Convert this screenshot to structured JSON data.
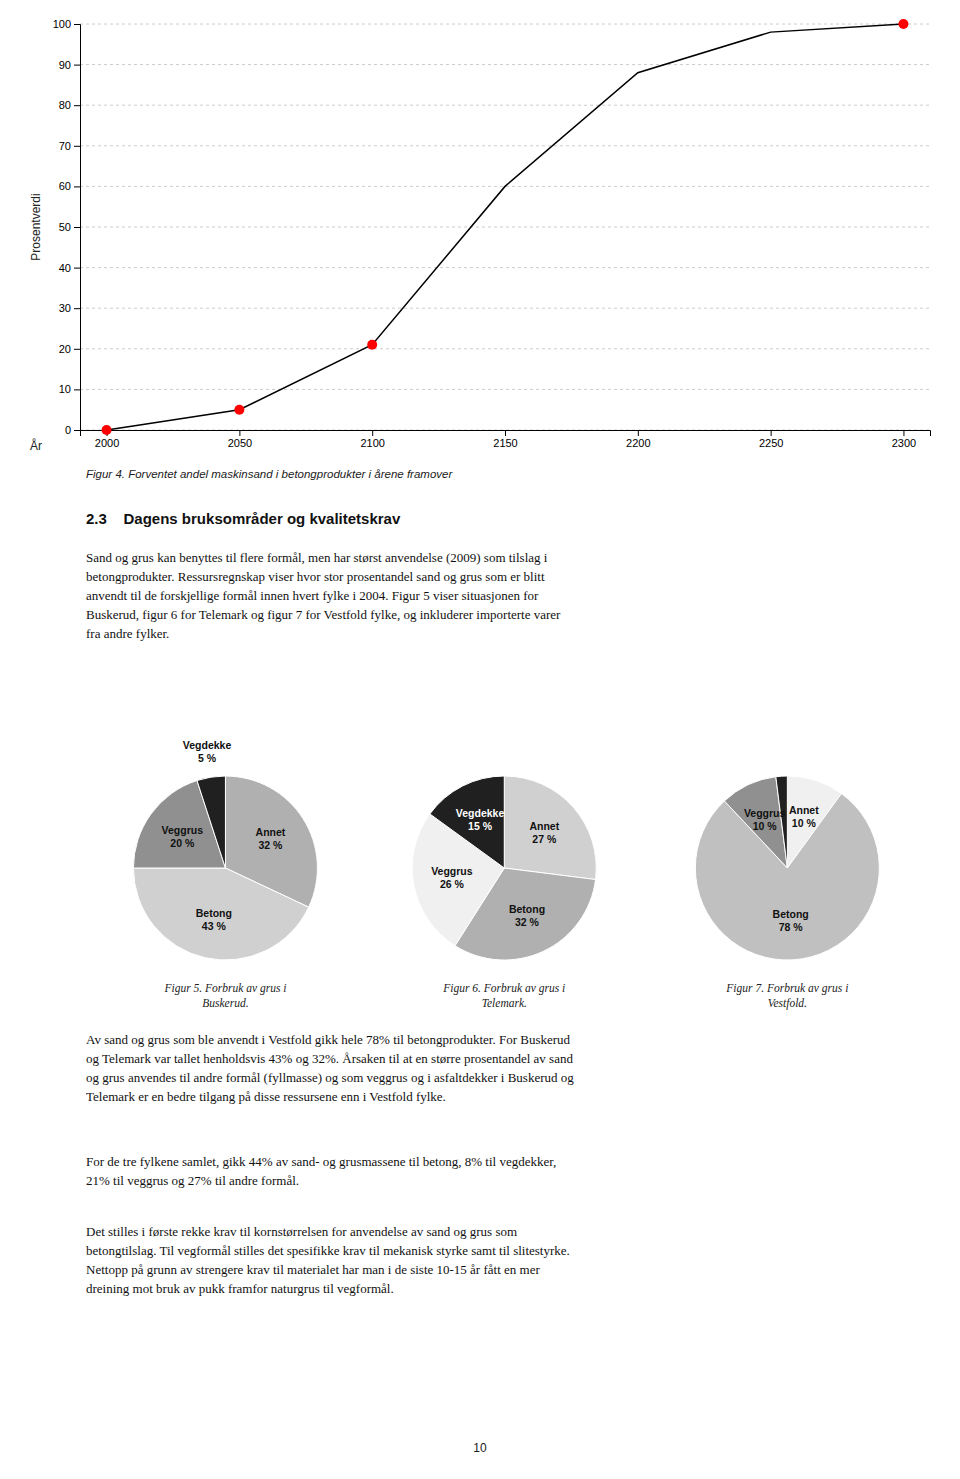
{
  "heading": "2.3    Dagens bruksområder og kvalitetskrav",
  "paragraphs": [
    [
      "Sand og grus kan benyttes til flere formål, men har størst anvendelse (2009) som tilslag i",
      "betongprodukter. Ressursregnskap viser hvor stor prosentandel sand og grus som er blitt",
      "anvendt til de forskjellige formål innen hvert fylke i 2004. Figur 5 viser situasjonen for",
      "Buskerud, figur 6 for Telemark og figur 7 for Vestfold fylke, og inkluderer importerte varer",
      "fra andre fylker."
    ],
    [
      "Av sand og grus som ble anvendt i Vestfold gikk hele 78% til betongprodukter. For Buskerud",
      "og Telemark var tallet henholdsvis 43% og 32%. Årsaken til at en større prosentandel av sand",
      "og grus anvendes til andre formål (fyllmasse) og som veggrus og i asfaltdekker i Buskerud og",
      "Telemark er en bedre tilgang på disse ressursene enn i Vestfold fylke."
    ],
    [
      "For de tre fylkene samlet, gikk 44% av sand- og grusmassene til betong, 8% til vegdekker,",
      "21% til veggrus og 27% til andre formål."
    ],
    [
      "Det stilles i første rekke krav til kornstørrelsen for anvendelse av sand og grus som",
      "betongtilslag. Til vegformål stilles det spesifikke krav til mekanisk styrke samt til slitestyrke.",
      "Nettopp på grunn av strengere krav til materialet har man i de siste 10-15 år fått en mer",
      "dreining mot bruk av pukk framfor naturgrus til vegformål."
    ]
  ],
  "page_number": "10",
  "chart_data": [
    {
      "type": "line",
      "title": "Figur 4.  Forventet andel maskinsand i betongprodukter i årene framover",
      "x_label": "År",
      "y_label": "Prosentverdi",
      "series": [
        {
          "type": "line",
          "color": "black",
          "x": [
            2000,
            2010,
            2050,
            2100,
            2150,
            2200,
            2250,
            2300
          ],
          "values": [
            0,
            1,
            5,
            21,
            60,
            88,
            98,
            100
          ]
        },
        {
          "type": "scatter",
          "color": "red",
          "x": [
            2000,
            2050,
            2100,
            2300
          ],
          "values": [
            0,
            5,
            21,
            100
          ]
        }
      ],
      "xlim": [
        1990,
        2310
      ],
      "ylim": [
        0,
        100
      ],
      "xticks": [
        2000,
        2050,
        2100,
        2150,
        2200,
        2250,
        2300
      ],
      "yticks": [
        0,
        10,
        20,
        30,
        40,
        50,
        60,
        70,
        80,
        90,
        100
      ],
      "grid": true
    },
    {
      "type": "pie",
      "title": "Figur 5.  Forbruk av grus i\nBuskerud.",
      "categories": [
        "Annet",
        "Betong",
        "Veggrus",
        "Vegdekke"
      ],
      "values": [
        32,
        43,
        20,
        5
      ],
      "value_labels": [
        "32 %",
        "43 %",
        "20 %",
        "5 %"
      ],
      "colors": [
        "#b0b0b0",
        "#d0d0d0",
        "#909090",
        "#202020"
      ],
      "data_labels": true
    },
    {
      "type": "pie",
      "title": "Figur 6.  Forbruk av grus i\nTelemark.",
      "categories": [
        "Annet",
        "Betong",
        "Veggrus",
        "Vegdekke"
      ],
      "values": [
        27,
        32,
        26,
        15
      ],
      "value_labels": [
        "27 %",
        "32 %",
        "26 %",
        "15 %"
      ],
      "colors": [
        "#d0d0d0",
        "#b0b0b0",
        "#f0f0f0",
        "#202020"
      ],
      "data_labels": true
    },
    {
      "type": "pie",
      "title": "Figur 7.  Forbruk av grus i\nVestfold.",
      "categories": [
        "Annet",
        "Betong",
        "Veggrus",
        null
      ],
      "values": [
        10,
        78,
        10,
        2
      ],
      "value_labels": [
        "10 %",
        "78 %",
        "10 %",
        null
      ],
      "colors": [
        "#f0f0f0",
        "#c0c0c0",
        "#909090",
        "#202020"
      ],
      "data_labels": true
    }
  ]
}
